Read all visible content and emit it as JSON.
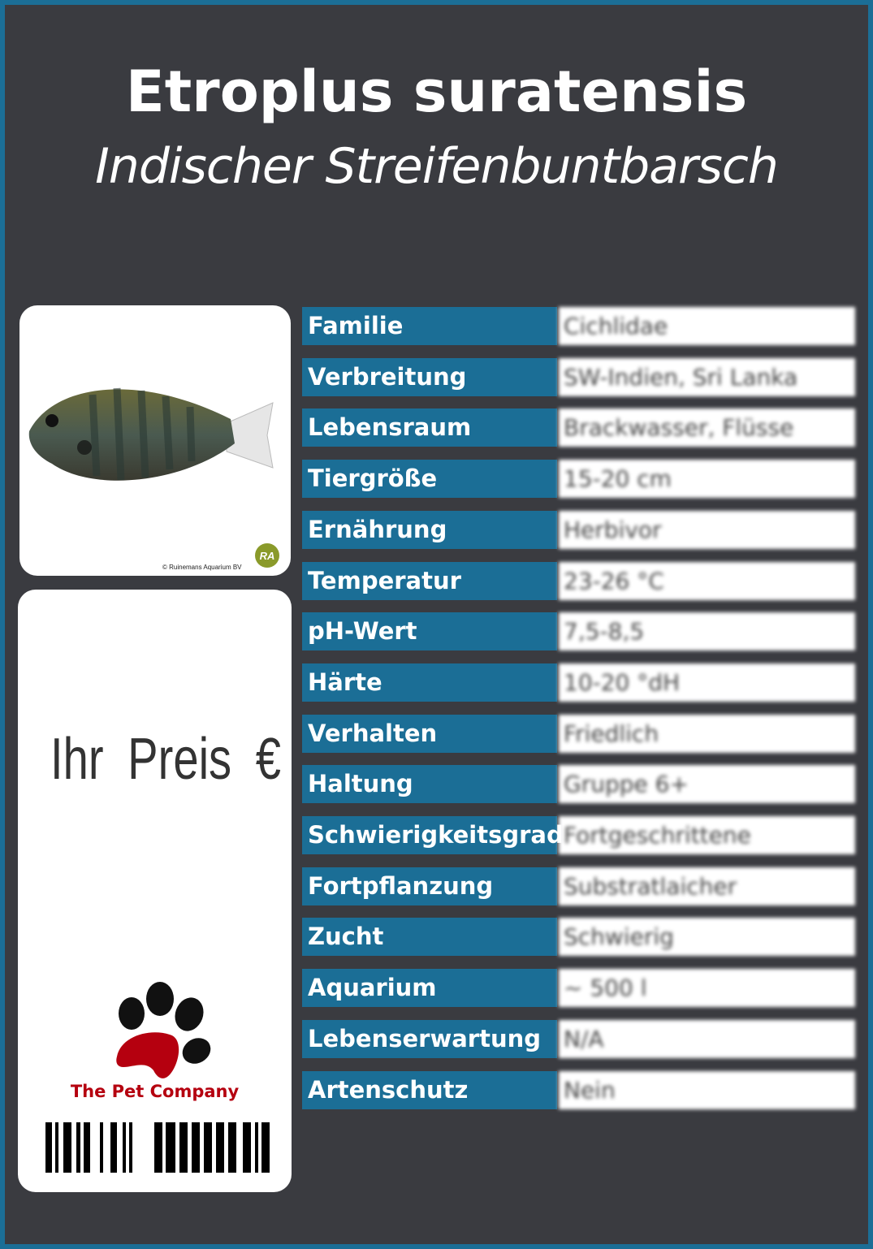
{
  "header": {
    "title": "Etroplus suratensis",
    "subtitle": "Indischer Streifenbuntbarsch"
  },
  "image_card": {
    "copyright": "© Ruinemans Aquarium BV",
    "logo_text": "RA"
  },
  "price_card": {
    "price_label": "Ihr Preis €",
    "company": "The Pet Company"
  },
  "colors": {
    "accent": "#1b6e96",
    "background": "#3a3b40",
    "brand_red": "#b5000f"
  },
  "facts": [
    {
      "label": "Familie",
      "value": "Cichlidae"
    },
    {
      "label": "Verbreitung",
      "value": "SW-Indien, Sri Lanka"
    },
    {
      "label": "Lebensraum",
      "value": "Brackwasser, Flüsse"
    },
    {
      "label": "Tiergröße",
      "value": "15-20 cm"
    },
    {
      "label": "Ernährung",
      "value": "Herbivor"
    },
    {
      "label": "Temperatur",
      "value": "23-26 °C"
    },
    {
      "label": "pH-Wert",
      "value": "7,5-8,5"
    },
    {
      "label": "Härte",
      "value": "10-20 °dH"
    },
    {
      "label": "Verhalten",
      "value": "Friedlich"
    },
    {
      "label": "Haltung",
      "value": "Gruppe 6+"
    },
    {
      "label": "Schwierigkeitsgrad",
      "value": "Fortgeschrittene"
    },
    {
      "label": "Fortpflanzung",
      "value": "Substratlaicher"
    },
    {
      "label": "Zucht",
      "value": "Schwierig"
    },
    {
      "label": "Aquarium",
      "value": "~ 500 l"
    },
    {
      "label": "Lebenserwartung",
      "value": "N/A"
    },
    {
      "label": "Artenschutz",
      "value": "Nein"
    }
  ]
}
